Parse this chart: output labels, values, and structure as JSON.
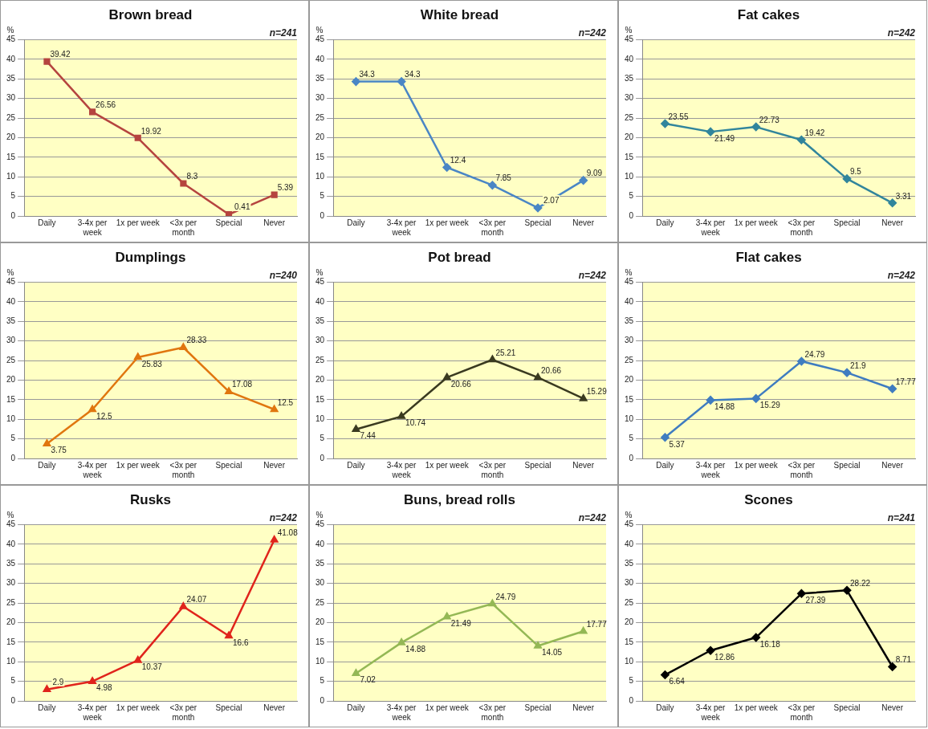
{
  "chart_data": [
    {
      "type": "line",
      "title": "Brown bread",
      "ylabel": "%",
      "annotations": [
        "n=241"
      ],
      "categories": [
        "Daily",
        "3-4x per week",
        "1x per week",
        "<3x per month",
        "Special",
        "Never"
      ],
      "series": [
        {
          "color": "#b5443f",
          "values": [
            39.42,
            26.56,
            19.92,
            8.3,
            0.41,
            5.39
          ]
        }
      ],
      "ylim": [
        0,
        45
      ],
      "yticks": [
        0,
        5,
        10,
        15,
        20,
        25,
        30,
        35,
        40,
        45
      ],
      "grid": "y",
      "marker": "square",
      "data_labels": true,
      "legend": false
    },
    {
      "type": "line",
      "title": "White bread",
      "ylabel": "%",
      "annotations": [
        "n=242"
      ],
      "categories": [
        "Daily",
        "3-4x per week",
        "1x per week",
        "<3x per month",
        "Special",
        "Never"
      ],
      "series": [
        {
          "color": "#4a86c5",
          "values": [
            34.3,
            34.3,
            12.4,
            7.85,
            2.07,
            9.09
          ]
        }
      ],
      "ylim": [
        0,
        45
      ],
      "yticks": [
        0,
        5,
        10,
        15,
        20,
        25,
        30,
        35,
        40,
        45
      ],
      "grid": "y",
      "marker": "diamond",
      "data_labels": true,
      "legend": false
    },
    {
      "type": "line",
      "title": "Fat cakes",
      "ylabel": "%",
      "annotations": [
        "n=242"
      ],
      "categories": [
        "Daily",
        "3-4x per week",
        "1x per week",
        "<3x per month",
        "Special",
        "Never"
      ],
      "series": [
        {
          "color": "#31859c",
          "values": [
            23.55,
            21.49,
            22.73,
            19.42,
            9.5,
            3.31
          ]
        }
      ],
      "ylim": [
        0,
        45
      ],
      "yticks": [
        0,
        5,
        10,
        15,
        20,
        25,
        30,
        35,
        40,
        45
      ],
      "grid": "y",
      "marker": "diamond",
      "data_labels": true,
      "legend": false
    },
    {
      "type": "line",
      "title": "Dumplings",
      "ylabel": "%",
      "annotations": [
        "n=240"
      ],
      "categories": [
        "Daily",
        "3-4x per week",
        "1x per week",
        "<3x per month",
        "Special",
        "Never"
      ],
      "series": [
        {
          "color": "#e0760f",
          "values": [
            3.75,
            12.5,
            25.83,
            28.33,
            17.08,
            12.5
          ]
        }
      ],
      "ylim": [
        0,
        45
      ],
      "yticks": [
        0,
        5,
        10,
        15,
        20,
        25,
        30,
        35,
        40,
        45
      ],
      "grid": "y",
      "marker": "triangle",
      "data_labels": true,
      "legend": false
    },
    {
      "type": "line",
      "title": "Pot bread",
      "ylabel": "%",
      "annotations": [
        "n=242"
      ],
      "categories": [
        "Daily",
        "3-4x per week",
        "1x per week",
        "<3x per month",
        "Special",
        "Never"
      ],
      "series": [
        {
          "color": "#3a3a20",
          "values": [
            7.44,
            10.74,
            20.66,
            25.21,
            20.66,
            15.29
          ]
        }
      ],
      "ylim": [
        0,
        45
      ],
      "yticks": [
        0,
        5,
        10,
        15,
        20,
        25,
        30,
        35,
        40,
        45
      ],
      "grid": "y",
      "marker": "triangle",
      "data_labels": true,
      "legend": false
    },
    {
      "type": "line",
      "title": "Flat cakes",
      "ylabel": "%",
      "annotations": [
        "n=242"
      ],
      "categories": [
        "Daily",
        "3-4x per week",
        "1x per week",
        "<3x per month",
        "Special",
        "Never"
      ],
      "series": [
        {
          "color": "#3f7cc0",
          "values": [
            5.37,
            14.88,
            15.29,
            24.79,
            21.9,
            17.77
          ]
        }
      ],
      "ylim": [
        0,
        45
      ],
      "yticks": [
        0,
        5,
        10,
        15,
        20,
        25,
        30,
        35,
        40,
        45
      ],
      "grid": "y",
      "marker": "diamond",
      "data_labels": true,
      "legend": false
    },
    {
      "type": "line",
      "title": "Rusks",
      "ylabel": "%",
      "annotations": [
        "n=242"
      ],
      "categories": [
        "Daily",
        "3-4x per week",
        "1x per week",
        "<3x per month",
        "Special",
        "Never"
      ],
      "series": [
        {
          "color": "#e0241c",
          "values": [
            2.9,
            4.98,
            10.37,
            24.07,
            16.6,
            41.08
          ]
        }
      ],
      "ylim": [
        0,
        45
      ],
      "yticks": [
        0,
        5,
        10,
        15,
        20,
        25,
        30,
        35,
        40,
        45
      ],
      "grid": "y",
      "marker": "triangle",
      "data_labels": true,
      "legend": false
    },
    {
      "type": "line",
      "title": "Buns, bread rolls",
      "ylabel": "%",
      "annotations": [
        "n=242"
      ],
      "categories": [
        "Daily",
        "3-4x per week",
        "1x per week",
        "<3x per month",
        "Special",
        "Never"
      ],
      "series": [
        {
          "color": "#94b855",
          "values": [
            7.02,
            14.88,
            21.49,
            24.79,
            14.05,
            17.77
          ]
        }
      ],
      "ylim": [
        0,
        45
      ],
      "yticks": [
        0,
        5,
        10,
        15,
        20,
        25,
        30,
        35,
        40,
        45
      ],
      "grid": "y",
      "marker": "triangle",
      "data_labels": true,
      "legend": false
    },
    {
      "type": "line",
      "title": "Scones",
      "ylabel": "%",
      "annotations": [
        "n=241"
      ],
      "categories": [
        "Daily",
        "3-4x per week",
        "1x per week",
        "<3x per month",
        "Special",
        "Never"
      ],
      "series": [
        {
          "color": "#000000",
          "values": [
            6.64,
            12.86,
            16.18,
            27.39,
            28.22,
            8.71
          ]
        }
      ],
      "ylim": [
        0,
        45
      ],
      "yticks": [
        0,
        5,
        10,
        15,
        20,
        25,
        30,
        35,
        40,
        45
      ],
      "grid": "y",
      "marker": "diamond",
      "data_labels": true,
      "legend": false
    }
  ]
}
